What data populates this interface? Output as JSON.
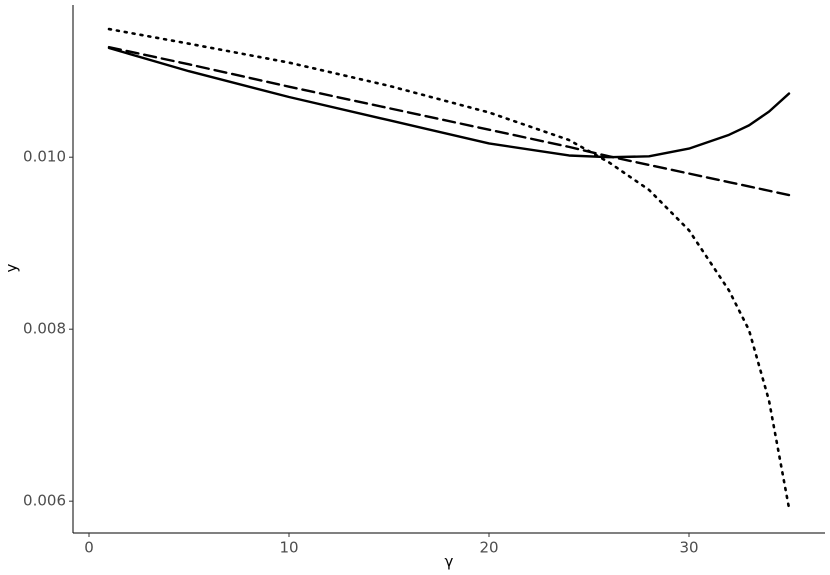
{
  "chart_data": {
    "type": "line",
    "x_label": "γ",
    "y_label": "y",
    "x": [
      1,
      5,
      10,
      15,
      20,
      24,
      26,
      28,
      30,
      32,
      33,
      34,
      35
    ],
    "series": [
      {
        "color": "#000000",
        "dash": "solid",
        "values": [
          0.01127,
          0.011,
          0.0107,
          0.01043,
          0.01016,
          0.01002,
          0.01,
          0.01001,
          0.0101,
          0.01026,
          0.01037,
          0.01053,
          0.01074
        ]
      },
      {
        "color": "#000000",
        "dash": "dashed",
        "values": [
          0.01128,
          0.01108,
          0.01082,
          0.01057,
          0.01032,
          0.01012,
          0.01001,
          0.00991,
          0.00981,
          0.00971,
          0.00966,
          0.00961,
          0.00956
        ]
      },
      {
        "color": "#000000",
        "dash": "dotted",
        "values": [
          0.01149,
          0.01132,
          0.0111,
          0.01083,
          0.01052,
          0.0102,
          0.00994,
          0.00962,
          0.00915,
          0.00845,
          0.00799,
          0.00717,
          0.00592
        ]
      }
    ],
    "xlim": [
      -0.8,
      36.8
    ],
    "xticks": [
      0,
      10,
      20,
      30
    ],
    "ylim": [
      0.00563,
      0.01177
    ],
    "yticks": [
      {
        "value": 0.006,
        "label": "0.006"
      },
      {
        "value": 0.008,
        "label": "0.008"
      },
      {
        "value": 0.01,
        "label": "0.010"
      }
    ],
    "grid": false
  }
}
